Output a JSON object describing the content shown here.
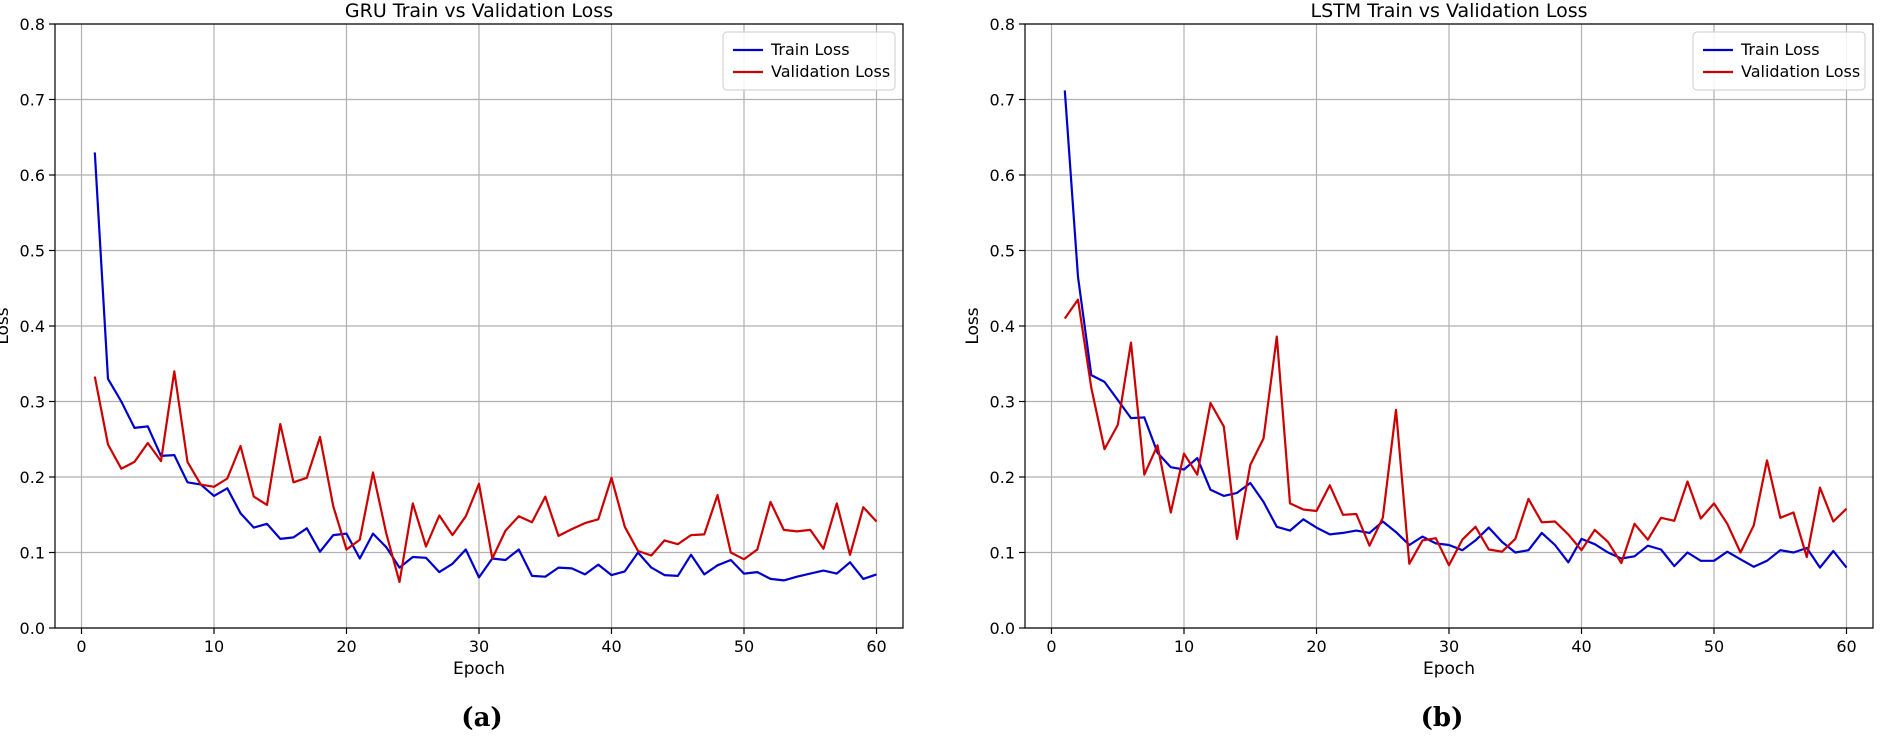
{
  "chart_data": [
    {
      "type": "line",
      "title": "GRU Train vs Validation Loss",
      "xlabel": "Epoch",
      "ylabel": "Loss",
      "xlim": [
        -2,
        62
      ],
      "ylim": [
        0,
        0.8
      ],
      "xticks": [
        0,
        10,
        20,
        30,
        40,
        50,
        60
      ],
      "yticks": [
        0.0,
        0.1,
        0.2,
        0.3,
        0.4,
        0.5,
        0.6,
        0.7,
        0.8
      ],
      "grid": true,
      "legend": "top-right",
      "panel_label": "(a)",
      "x": [
        1,
        2,
        3,
        4,
        5,
        6,
        7,
        8,
        9,
        10,
        11,
        12,
        13,
        14,
        15,
        16,
        17,
        18,
        19,
        20,
        21,
        22,
        23,
        24,
        25,
        26,
        27,
        28,
        29,
        30,
        31,
        32,
        33,
        34,
        35,
        36,
        37,
        38,
        39,
        40,
        41,
        42,
        43,
        44,
        45,
        46,
        47,
        48,
        49,
        50,
        51,
        52,
        53,
        54,
        55,
        56,
        57,
        58,
        59,
        60
      ],
      "series": [
        {
          "name": "Train Loss",
          "color": "#0000cc",
          "values": [
            0.63,
            0.33,
            0.3,
            0.265,
            0.267,
            0.228,
            0.229,
            0.193,
            0.19,
            0.175,
            0.185,
            0.152,
            0.133,
            0.138,
            0.118,
            0.12,
            0.132,
            0.101,
            0.123,
            0.125,
            0.092,
            0.125,
            0.107,
            0.08,
            0.094,
            0.093,
            0.074,
            0.085,
            0.104,
            0.067,
            0.092,
            0.09,
            0.104,
            0.069,
            0.068,
            0.08,
            0.079,
            0.071,
            0.084,
            0.07,
            0.075,
            0.1,
            0.08,
            0.07,
            0.069,
            0.097,
            0.071,
            0.083,
            0.09,
            0.072,
            0.074,
            0.065,
            0.063,
            0.068,
            0.072,
            0.076,
            0.072,
            0.087,
            0.065,
            0.071
          ]
        },
        {
          "name": "Validation Loss",
          "color": "#cc0000",
          "values": [
            0.333,
            0.243,
            0.211,
            0.22,
            0.245,
            0.221,
            0.34,
            0.22,
            0.19,
            0.187,
            0.198,
            0.241,
            0.174,
            0.163,
            0.27,
            0.193,
            0.199,
            0.253,
            0.161,
            0.104,
            0.117,
            0.206,
            0.125,
            0.061,
            0.165,
            0.108,
            0.149,
            0.123,
            0.148,
            0.191,
            0.092,
            0.129,
            0.148,
            0.14,
            0.174,
            0.122,
            0.131,
            0.139,
            0.144,
            0.199,
            0.134,
            0.102,
            0.096,
            0.116,
            0.111,
            0.123,
            0.124,
            0.176,
            0.1,
            0.091,
            0.104,
            0.167,
            0.13,
            0.128,
            0.13,
            0.105,
            0.165,
            0.097,
            0.16,
            0.141
          ]
        }
      ]
    },
    {
      "type": "line",
      "title": "LSTM Train vs Validation Loss",
      "xlabel": "Epoch",
      "ylabel": "Loss",
      "xlim": [
        -2,
        62
      ],
      "ylim": [
        0,
        0.8
      ],
      "xticks": [
        0,
        10,
        20,
        30,
        40,
        50,
        60
      ],
      "yticks": [
        0.0,
        0.1,
        0.2,
        0.3,
        0.4,
        0.5,
        0.6,
        0.7,
        0.8
      ],
      "grid": true,
      "legend": "top-right",
      "panel_label": "(b)",
      "x": [
        1,
        2,
        3,
        4,
        5,
        6,
        7,
        8,
        9,
        10,
        11,
        12,
        13,
        14,
        15,
        16,
        17,
        18,
        19,
        20,
        21,
        22,
        23,
        24,
        25,
        26,
        27,
        28,
        29,
        30,
        31,
        32,
        33,
        34,
        35,
        36,
        37,
        38,
        39,
        40,
        41,
        42,
        43,
        44,
        45,
        46,
        47,
        48,
        49,
        50,
        51,
        52,
        53,
        54,
        55,
        56,
        57,
        58,
        59,
        60
      ],
      "series": [
        {
          "name": "Train Loss",
          "color": "#0000cc",
          "values": [
            0.712,
            0.465,
            0.335,
            0.326,
            0.302,
            0.278,
            0.279,
            0.232,
            0.213,
            0.21,
            0.225,
            0.183,
            0.175,
            0.179,
            0.192,
            0.167,
            0.134,
            0.129,
            0.144,
            0.133,
            0.124,
            0.126,
            0.129,
            0.126,
            0.141,
            0.127,
            0.11,
            0.121,
            0.112,
            0.11,
            0.103,
            0.116,
            0.133,
            0.114,
            0.1,
            0.103,
            0.126,
            0.11,
            0.087,
            0.118,
            0.111,
            0.1,
            0.092,
            0.095,
            0.109,
            0.104,
            0.082,
            0.1,
            0.089,
            0.089,
            0.101,
            0.091,
            0.081,
            0.089,
            0.103,
            0.1,
            0.106,
            0.08,
            0.102,
            0.08
          ]
        },
        {
          "name": "Validation Loss",
          "color": "#cc0000",
          "values": [
            0.41,
            0.435,
            0.318,
            0.237,
            0.269,
            0.378,
            0.203,
            0.242,
            0.153,
            0.231,
            0.203,
            0.298,
            0.267,
            0.118,
            0.216,
            0.251,
            0.386,
            0.165,
            0.157,
            0.155,
            0.189,
            0.15,
            0.151,
            0.109,
            0.146,
            0.289,
            0.085,
            0.116,
            0.119,
            0.083,
            0.117,
            0.134,
            0.104,
            0.101,
            0.118,
            0.171,
            0.14,
            0.141,
            0.124,
            0.103,
            0.13,
            0.114,
            0.086,
            0.138,
            0.117,
            0.146,
            0.142,
            0.194,
            0.145,
            0.165,
            0.138,
            0.1,
            0.136,
            0.222,
            0.146,
            0.153,
            0.094,
            0.186,
            0.141,
            0.158
          ]
        }
      ]
    }
  ]
}
